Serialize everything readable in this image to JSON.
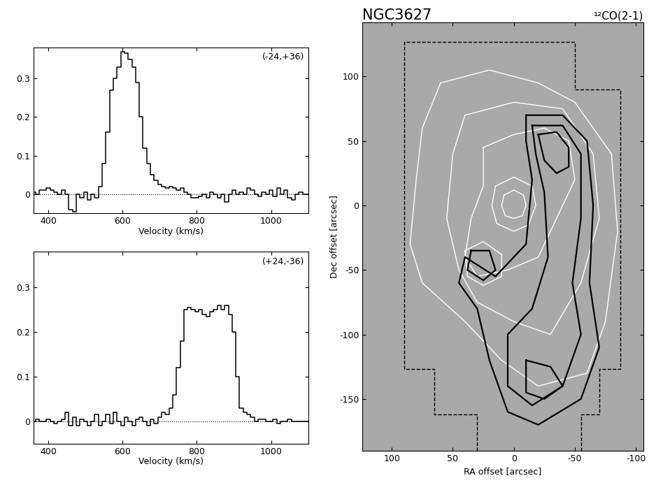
{
  "chart_data": [
    {
      "type": "step",
      "annotation": "(-24,+36)",
      "xlabel": "Velocity (km/s)",
      "xlim": [
        360,
        1100
      ],
      "ylim": [
        -0.05,
        0.38
      ],
      "xticks": [
        400,
        600,
        800,
        1000
      ],
      "yticks": [
        0,
        0.1,
        0.2,
        0.3
      ],
      "baseline": 0,
      "color": "black",
      "x": [
        360,
        370,
        380,
        390,
        400,
        410,
        420,
        430,
        440,
        450,
        460,
        470,
        480,
        490,
        500,
        510,
        520,
        530,
        540,
        550,
        560,
        570,
        580,
        590,
        600,
        610,
        620,
        630,
        640,
        650,
        660,
        670,
        680,
        690,
        700,
        710,
        720,
        730,
        740,
        750,
        760,
        770,
        780,
        790,
        800,
        810,
        820,
        830,
        840,
        850,
        860,
        870,
        880,
        890,
        900,
        910,
        920,
        930,
        940,
        950,
        960,
        970,
        980,
        990,
        1000,
        1010,
        1020,
        1030,
        1040,
        1050,
        1060,
        1070,
        1080,
        1090,
        1100
      ],
      "values": [
        0.005,
        0.0,
        0.01,
        0.01,
        0.015,
        0.01,
        0.005,
        0.0,
        0.01,
        0.0,
        -0.04,
        -0.045,
        0.0,
        -0.01,
        0.005,
        -0.015,
        0.0,
        -0.01,
        0.02,
        0.08,
        0.16,
        0.27,
        0.3,
        0.33,
        0.37,
        0.365,
        0.35,
        0.33,
        0.29,
        0.2,
        0.12,
        0.08,
        0.05,
        0.035,
        0.025,
        0.02,
        0.015,
        0.02,
        0.015,
        0.01,
        0.015,
        0.005,
        0.0,
        -0.01,
        -0.01,
        -0.005,
        0.0,
        -0.01,
        0.005,
        0.0,
        -0.01,
        0.0,
        -0.02,
        0.0,
        0.01,
        0.0,
        0.005,
        0.0,
        0.015,
        0.01,
        0.0,
        -0.005,
        0.005,
        0.0,
        0.01,
        -0.005,
        0.015,
        0.0,
        0.01,
        -0.01,
        -0.015,
        0.0,
        0.005,
        0.0,
        0.0
      ]
    },
    {
      "type": "step",
      "annotation": "(+24,-36)",
      "xlabel": "Velocity (km/s)",
      "xlim": [
        360,
        1100
      ],
      "ylim": [
        -0.05,
        0.38
      ],
      "xticks": [
        400,
        600,
        800,
        1000
      ],
      "yticks": [
        0,
        0.1,
        0.2,
        0.3
      ],
      "baseline": 0,
      "color": "black",
      "x": [
        360,
        370,
        380,
        390,
        400,
        410,
        420,
        430,
        440,
        450,
        460,
        470,
        480,
        490,
        500,
        510,
        520,
        530,
        540,
        550,
        560,
        570,
        580,
        590,
        600,
        610,
        620,
        630,
        640,
        650,
        660,
        670,
        680,
        690,
        700,
        710,
        720,
        730,
        740,
        750,
        760,
        770,
        780,
        790,
        800,
        810,
        820,
        830,
        840,
        850,
        860,
        870,
        880,
        890,
        900,
        910,
        920,
        930,
        940,
        950,
        960,
        970,
        980,
        990,
        1000,
        1010,
        1020,
        1030,
        1040,
        1050,
        1060,
        1070,
        1080,
        1090,
        1100
      ],
      "values": [
        0.0,
        0.005,
        0.0,
        0.0,
        0.005,
        0.0,
        -0.005,
        0.0,
        0.005,
        0.02,
        -0.01,
        0.01,
        -0.01,
        0.005,
        0.0,
        -0.01,
        0.0,
        0.015,
        -0.01,
        0.0,
        0.015,
        -0.005,
        0.02,
        0.0,
        -0.01,
        0.01,
        0.0,
        -0.01,
        0.005,
        0.01,
        0.0,
        -0.01,
        0.005,
        -0.005,
        0.01,
        0.02,
        0.015,
        0.03,
        0.06,
        0.12,
        0.18,
        0.25,
        0.255,
        0.25,
        0.245,
        0.25,
        0.24,
        0.235,
        0.245,
        0.25,
        0.26,
        0.25,
        0.26,
        0.24,
        0.2,
        0.1,
        0.03,
        0.02,
        0.015,
        0.01,
        0.0,
        0.005,
        0.005,
        0.0,
        0.0,
        0.005,
        -0.005,
        0.0,
        0.0,
        0.005,
        0.0,
        0.0,
        0.0,
        0.0,
        0.0
      ]
    },
    {
      "type": "contour",
      "title": "NGC3627",
      "subtitle": "¹²CO(2-1)",
      "xlabel": "RA offset [arcsec]",
      "ylabel": "Dec offset [arcsec]",
      "xlim": [
        124,
        -106
      ],
      "ylim": [
        -190,
        142
      ],
      "xticks": [
        100,
        50,
        0,
        -50,
        -100
      ],
      "yticks": [
        100,
        50,
        0,
        -50,
        -100,
        -150
      ],
      "boundary": {
        "color": "black",
        "line_style": "dashed",
        "points": [
          [
            30,
            -190
          ],
          [
            30,
            -162
          ],
          [
            65,
            -162
          ],
          [
            65,
            -127
          ],
          [
            90,
            -127
          ],
          [
            90,
            127
          ],
          [
            -50,
            127
          ],
          [
            -50,
            90
          ],
          [
            -87,
            90
          ],
          [
            -87,
            -127
          ],
          [
            -70,
            -127
          ],
          [
            -70,
            -162
          ],
          [
            -55,
            -162
          ],
          [
            -55,
            -190
          ]
        ]
      },
      "contours": [
        {
          "color": "white",
          "paths": [
            [
              [
                60,
                95
              ],
              [
                20,
                105
              ],
              [
                -20,
                95
              ],
              [
                -50,
                80
              ],
              [
                -80,
                40
              ],
              [
                -85,
                -20
              ],
              [
                -75,
                -90
              ],
              [
                -60,
                -130
              ],
              [
                -20,
                -140
              ],
              [
                10,
                -120
              ],
              [
                40,
                -90
              ],
              [
                75,
                -60
              ],
              [
                85,
                -30
              ],
              [
                80,
                20
              ],
              [
                75,
                60
              ]
            ],
            [
              [
                40,
                70
              ],
              [
                0,
                80
              ],
              [
                -40,
                75
              ],
              [
                -65,
                40
              ],
              [
                -70,
                -10
              ],
              [
                -55,
                -60
              ],
              [
                -30,
                -100
              ],
              [
                0,
                -90
              ],
              [
                30,
                -75
              ],
              [
                45,
                -50
              ],
              [
                55,
                -10
              ],
              [
                50,
                40
              ]
            ],
            [
              [
                25,
                45
              ],
              [
                0,
                55
              ],
              [
                -25,
                60
              ],
              [
                -45,
                50
              ],
              [
                -50,
                20
              ],
              [
                -35,
                -10
              ],
              [
                -20,
                -40
              ],
              [
                5,
                -50
              ],
              [
                30,
                -55
              ],
              [
                40,
                -40
              ],
              [
                35,
                -10
              ],
              [
                25,
                15
              ]
            ],
            [
              [
                15,
                15
              ],
              [
                0,
                22
              ],
              [
                -15,
                15
              ],
              [
                -18,
                0
              ],
              [
                -12,
                -15
              ],
              [
                0,
                -20
              ],
              [
                14,
                -14
              ],
              [
                18,
                0
              ]
            ],
            [
              [
                8,
                8
              ],
              [
                0,
                12
              ],
              [
                -8,
                8
              ],
              [
                -10,
                0
              ],
              [
                -7,
                -8
              ],
              [
                0,
                -10
              ],
              [
                7,
                -8
              ],
              [
                10,
                0
              ]
            ],
            [
              [
                40,
                -35
              ],
              [
                25,
                -28
              ],
              [
                10,
                -38
              ],
              [
                10,
                -55
              ],
              [
                25,
                -62
              ],
              [
                38,
                -55
              ]
            ]
          ]
        },
        {
          "color": "black",
          "paths": [
            [
              [
                -10,
                70
              ],
              [
                -40,
                70
              ],
              [
                -60,
                50
              ],
              [
                -65,
                0
              ],
              [
                -62,
                -60
              ],
              [
                -70,
                -110
              ],
              [
                -55,
                -150
              ],
              [
                -20,
                -170
              ],
              [
                5,
                -160
              ],
              [
                20,
                -120
              ],
              [
                30,
                -80
              ],
              [
                45,
                -60
              ],
              [
                40,
                -40
              ],
              [
                15,
                -55
              ],
              [
                -10,
                -30
              ],
              [
                -15,
                20
              ],
              [
                -10,
                50
              ]
            ],
            [
              [
                -15,
                62
              ],
              [
                -40,
                62
              ],
              [
                -55,
                40
              ],
              [
                -55,
                -10
              ],
              [
                -48,
                -60
              ],
              [
                -55,
                -100
              ],
              [
                -40,
                -140
              ],
              [
                -15,
                -155
              ],
              [
                5,
                -140
              ],
              [
                5,
                -100
              ],
              [
                -15,
                -80
              ],
              [
                -28,
                -40
              ],
              [
                -25,
                10
              ],
              [
                -18,
                40
              ]
            ],
            [
              [
                -20,
                55
              ],
              [
                -35,
                57
              ],
              [
                -45,
                45
              ],
              [
                -45,
                30
              ],
              [
                -35,
                25
              ],
              [
                -25,
                35
              ]
            ],
            [
              [
                -10,
                -120
              ],
              [
                -30,
                -125
              ],
              [
                -40,
                -140
              ],
              [
                -25,
                -150
              ],
              [
                -10,
                -145
              ]
            ],
            [
              [
                35,
                -35
              ],
              [
                20,
                -35
              ],
              [
                15,
                -50
              ],
              [
                25,
                -58
              ],
              [
                38,
                -50
              ]
            ]
          ]
        }
      ]
    }
  ]
}
